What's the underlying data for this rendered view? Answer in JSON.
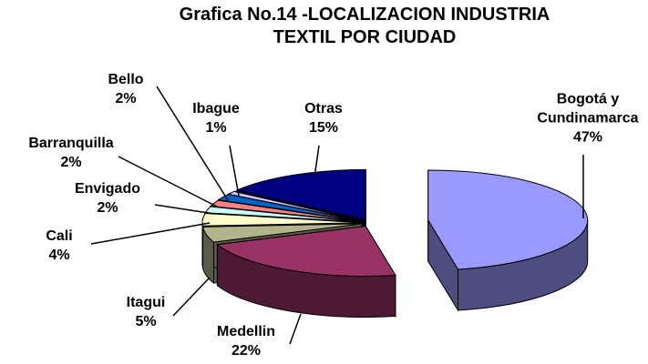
{
  "chart_data": {
    "type": "pie",
    "title": "Grafica No.14 -LOCALIZACION INDUSTRIA TEXTIL POR CIUDAD",
    "categories": [
      "Bogotá y Cundinamarca",
      "Medellin",
      "Itagui",
      "Cali",
      "Envigado",
      "Barranquilla",
      "Bello",
      "Ibague",
      "Otras"
    ],
    "values": [
      47,
      22,
      5,
      4,
      2,
      2,
      2,
      1,
      15
    ],
    "value_labels": [
      "47%",
      "22%",
      "5%",
      "4%",
      "2%",
      "2%",
      "2%",
      "1%",
      "15%"
    ],
    "colors": [
      "#9999ff",
      "#993366",
      "#b3b38c",
      "#ffffcc",
      "#ccffff",
      "#ff8080",
      "#0066cc",
      "#ccccff",
      "#000080"
    ]
  }
}
